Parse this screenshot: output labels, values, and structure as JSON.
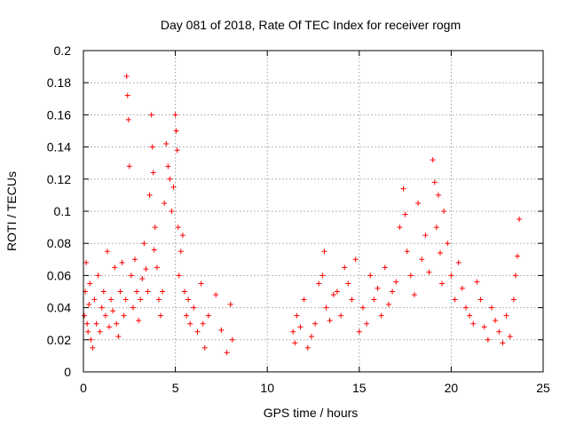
{
  "chart_data": {
    "type": "scatter",
    "title": "Day 081 of 2018, Rate Of TEC Index for receiver rogm",
    "xlabel": "GPS time / hours",
    "ylabel": "ROTI / TECUs",
    "xlim": [
      0,
      25
    ],
    "ylim": [
      0,
      0.2
    ],
    "xticks": [
      "0",
      "5",
      "10",
      "15",
      "20",
      "25"
    ],
    "yticks": [
      "0",
      "0.02",
      "0.04",
      "0.06",
      "0.08",
      "0.1",
      "0.12",
      "0.14",
      "0.16",
      "0.18",
      "0.2"
    ],
    "grid": true,
    "marker": "+",
    "color": "#ff0000",
    "series": [
      {
        "name": "ROTI",
        "x": [
          0.05,
          0.1,
          0.15,
          0.2,
          0.25,
          0.3,
          0.35,
          0.4,
          0.5,
          0.6,
          0.7,
          0.8,
          0.9,
          1.0,
          1.1,
          1.2,
          1.3,
          1.4,
          1.5,
          1.6,
          1.7,
          1.8,
          1.9,
          2.0,
          2.1,
          2.2,
          2.3,
          2.35,
          2.4,
          2.45,
          2.5,
          2.6,
          2.7,
          2.8,
          2.9,
          3.0,
          3.1,
          3.2,
          3.3,
          3.4,
          3.5,
          3.6,
          3.7,
          3.75,
          3.8,
          3.85,
          3.9,
          4.0,
          4.1,
          4.2,
          4.3,
          4.4,
          4.5,
          4.6,
          4.7,
          4.8,
          4.9,
          5.0,
          5.05,
          5.1,
          5.15,
          5.2,
          5.3,
          5.4,
          5.5,
          5.6,
          5.7,
          5.8,
          6.0,
          6.2,
          6.4,
          6.5,
          6.6,
          6.8,
          7.2,
          7.5,
          7.8,
          8.0,
          8.1,
          11.4,
          11.5,
          11.6,
          11.8,
          12.0,
          12.2,
          12.4,
          12.6,
          12.8,
          13.0,
          13.1,
          13.2,
          13.4,
          13.6,
          13.8,
          14.0,
          14.2,
          14.4,
          14.6,
          14.8,
          15.0,
          15.2,
          15.4,
          15.6,
          15.8,
          16.0,
          16.2,
          16.4,
          16.6,
          16.8,
          17.0,
          17.2,
          17.4,
          17.5,
          17.6,
          17.8,
          18.0,
          18.2,
          18.4,
          18.6,
          18.8,
          19.0,
          19.1,
          19.2,
          19.3,
          19.4,
          19.5,
          19.6,
          19.8,
          20.0,
          20.2,
          20.4,
          20.6,
          20.8,
          21.0,
          21.2,
          21.4,
          21.6,
          21.8,
          22.0,
          22.2,
          22.4,
          22.6,
          22.8,
          23.0,
          23.2,
          23.4,
          23.5,
          23.6,
          23.7
        ],
        "y": [
          0.035,
          0.05,
          0.068,
          0.03,
          0.025,
          0.042,
          0.055,
          0.02,
          0.015,
          0.045,
          0.03,
          0.06,
          0.025,
          0.04,
          0.05,
          0.035,
          0.075,
          0.028,
          0.045,
          0.038,
          0.065,
          0.03,
          0.022,
          0.05,
          0.068,
          0.035,
          0.045,
          0.184,
          0.172,
          0.157,
          0.128,
          0.06,
          0.04,
          0.07,
          0.05,
          0.032,
          0.045,
          0.058,
          0.08,
          0.064,
          0.05,
          0.11,
          0.16,
          0.14,
          0.124,
          0.076,
          0.09,
          0.065,
          0.045,
          0.035,
          0.05,
          0.105,
          0.142,
          0.128,
          0.12,
          0.1,
          0.115,
          0.16,
          0.15,
          0.138,
          0.09,
          0.06,
          0.075,
          0.085,
          0.05,
          0.035,
          0.045,
          0.03,
          0.04,
          0.025,
          0.055,
          0.03,
          0.015,
          0.035,
          0.048,
          0.026,
          0.012,
          0.042,
          0.02,
          0.025,
          0.018,
          0.035,
          0.028,
          0.045,
          0.015,
          0.022,
          0.03,
          0.055,
          0.06,
          0.075,
          0.04,
          0.032,
          0.048,
          0.05,
          0.035,
          0.065,
          0.055,
          0.045,
          0.07,
          0.025,
          0.04,
          0.03,
          0.06,
          0.045,
          0.052,
          0.035,
          0.065,
          0.042,
          0.05,
          0.056,
          0.09,
          0.114,
          0.098,
          0.075,
          0.06,
          0.048,
          0.105,
          0.07,
          0.085,
          0.062,
          0.132,
          0.118,
          0.09,
          0.11,
          0.074,
          0.055,
          0.1,
          0.08,
          0.06,
          0.045,
          0.068,
          0.052,
          0.04,
          0.035,
          0.03,
          0.056,
          0.045,
          0.028,
          0.02,
          0.04,
          0.032,
          0.025,
          0.018,
          0.035,
          0.022,
          0.045,
          0.06,
          0.072,
          0.095
        ]
      }
    ]
  }
}
